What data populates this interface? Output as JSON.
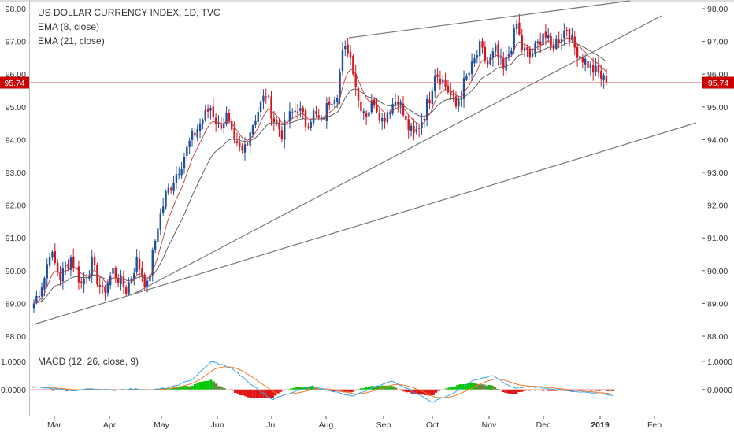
{
  "chart_data": {
    "type": "candlestick",
    "title": "US DOLLAR CURRENCY INDEX, 1D, TVC",
    "indicators": [
      "EMA (8, close)",
      "EMA (21, close)"
    ],
    "last_price": "95.74",
    "y_ticks": [
      "98.00",
      "97.00",
      "96.00",
      "95.00",
      "94.00",
      "93.00",
      "92.00",
      "91.00",
      "90.00",
      "89.00",
      "88.00"
    ],
    "ylim": [
      87.7,
      98.2
    ],
    "x_labels": [
      "Mar",
      "Apr",
      "May",
      "Jun",
      "Jul",
      "Aug",
      "Sep",
      "Oct",
      "Nov",
      "Dec",
      "2019",
      "Feb"
    ],
    "grid": false,
    "anchors": [
      [
        0,
        89.0
      ],
      [
        4,
        89.8
      ],
      [
        6,
        90.6
      ],
      [
        10,
        89.8
      ],
      [
        14,
        90.4
      ],
      [
        18,
        89.6
      ],
      [
        22,
        90.2
      ],
      [
        26,
        89.3
      ],
      [
        30,
        90.0
      ],
      [
        35,
        89.4
      ],
      [
        39,
        90.3
      ],
      [
        43,
        89.5
      ],
      [
        47,
        91.4
      ],
      [
        50,
        92.3
      ],
      [
        53,
        92.8
      ],
      [
        56,
        93.3
      ],
      [
        59,
        93.9
      ],
      [
        63,
        94.5
      ],
      [
        67,
        95.0
      ],
      [
        70,
        94.4
      ],
      [
        73,
        94.7
      ],
      [
        76,
        93.8
      ],
      [
        79,
        93.6
      ],
      [
        82,
        94.3
      ],
      [
        85,
        94.9
      ],
      [
        88,
        95.4
      ],
      [
        91,
        94.6
      ],
      [
        94,
        94.2
      ],
      [
        97,
        94.7
      ],
      [
        100,
        95.0
      ],
      [
        103,
        94.5
      ],
      [
        106,
        94.8
      ],
      [
        109,
        94.5
      ],
      [
        112,
        95.2
      ],
      [
        115,
        95.5
      ],
      [
        117,
        96.6
      ],
      [
        119,
        96.8
      ],
      [
        121,
        96.2
      ],
      [
        123,
        95.2
      ],
      [
        126,
        94.8
      ],
      [
        129,
        95.2
      ],
      [
        132,
        94.6
      ],
      [
        135,
        95.0
      ],
      [
        138,
        95.3
      ],
      [
        141,
        94.5
      ],
      [
        144,
        94.1
      ],
      [
        147,
        94.6
      ],
      [
        150,
        95.3
      ],
      [
        152,
        96.1
      ],
      [
        155,
        95.8
      ],
      [
        157,
        95.5
      ],
      [
        160,
        95.0
      ],
      [
        163,
        95.7
      ],
      [
        166,
        96.2
      ],
      [
        169,
        96.8
      ],
      [
        172,
        96.3
      ],
      [
        175,
        96.7
      ],
      [
        178,
        96.1
      ],
      [
        181,
        96.9
      ],
      [
        183,
        97.5
      ],
      [
        185,
        96.8
      ],
      [
        188,
        96.5
      ],
      [
        191,
        96.9
      ],
      [
        193,
        97.3
      ],
      [
        196,
        96.8
      ],
      [
        199,
        97.1
      ],
      [
        202,
        97.4
      ],
      [
        205,
        96.8
      ],
      [
        208,
        96.5
      ],
      [
        211,
        96.2
      ],
      [
        214,
        96.0
      ],
      [
        217,
        95.74
      ]
    ],
    "lower_series": [
      0.1,
      0.03,
      -0.05,
      0.03,
      -0.03,
      0.02,
      -0.02,
      0.08,
      0.35,
      1.0,
      0.75,
      0.15,
      -0.35,
      -0.1,
      0.12,
      -0.05,
      -0.25,
      0.05,
      0.3,
      -0.05,
      -0.45,
      -0.15,
      0.3,
      0.5,
      0.05,
      0.1,
      0.02,
      -0.08,
      -0.12,
      -0.2
    ],
    "lower_pane": {
      "title": "MACD (12, 26, close, 9)",
      "y_ticks": [
        "1.0000",
        "0.0000"
      ],
      "ylim": [
        -0.9,
        1.5
      ]
    },
    "colors": {
      "up": "#1f4e9a",
      "down": "#d4151d",
      "ema8": "#c23b3b",
      "ema21": "#555555",
      "trendline": "#787878",
      "macd_line": "#3aa0e6",
      "signal_line": "#f07a2a",
      "hist_pos": "#00c800",
      "hist_pos_fade": "#5f8a3c",
      "hist_neg": "#e01515",
      "price_tag": "#cc0000"
    }
  }
}
